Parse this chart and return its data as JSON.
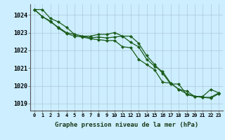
{
  "title": "Graphe pression niveau de la mer (hPa)",
  "bg_color": "#cceeff",
  "grid_color": "#b0c8d8",
  "line_color": "#1a5c1a",
  "x_labels": [
    "0",
    "1",
    "2",
    "3",
    "4",
    "5",
    "6",
    "7",
    "8",
    "9",
    "10",
    "11",
    "12",
    "13",
    "14",
    "15",
    "16",
    "17",
    "18",
    "19",
    "20",
    "21",
    "22",
    "23"
  ],
  "xlim": [
    -0.5,
    23.5
  ],
  "ylim": [
    1018.6,
    1024.6
  ],
  "yticks": [
    1019,
    1020,
    1021,
    1022,
    1023,
    1024
  ],
  "series": [
    [
      1024.3,
      1024.3,
      1023.8,
      1023.6,
      1023.3,
      1022.9,
      1022.8,
      1022.8,
      1022.9,
      1022.9,
      1023.0,
      1022.8,
      1022.8,
      1022.4,
      1021.7,
      1021.2,
      1020.7,
      1020.1,
      1020.1,
      1019.5,
      1019.4,
      1019.4,
      1019.8,
      1019.6
    ],
    [
      1024.3,
      1023.9,
      1023.6,
      1023.3,
      1023.0,
      1022.9,
      1022.8,
      1022.7,
      1022.75,
      1022.7,
      1022.75,
      1022.8,
      1022.45,
      1022.2,
      1021.5,
      1021.1,
      1020.8,
      1020.15,
      1019.8,
      1019.7,
      1019.4,
      1019.35,
      1019.35,
      1019.6
    ],
    [
      1024.3,
      1023.9,
      1023.65,
      1023.25,
      1022.95,
      1022.8,
      1022.75,
      1022.65,
      1022.6,
      1022.55,
      1022.55,
      1022.2,
      1022.15,
      1021.5,
      1021.2,
      1020.9,
      1020.2,
      1020.15,
      1019.8,
      1019.55,
      1019.4,
      1019.35,
      1019.3,
      1019.55
    ]
  ]
}
